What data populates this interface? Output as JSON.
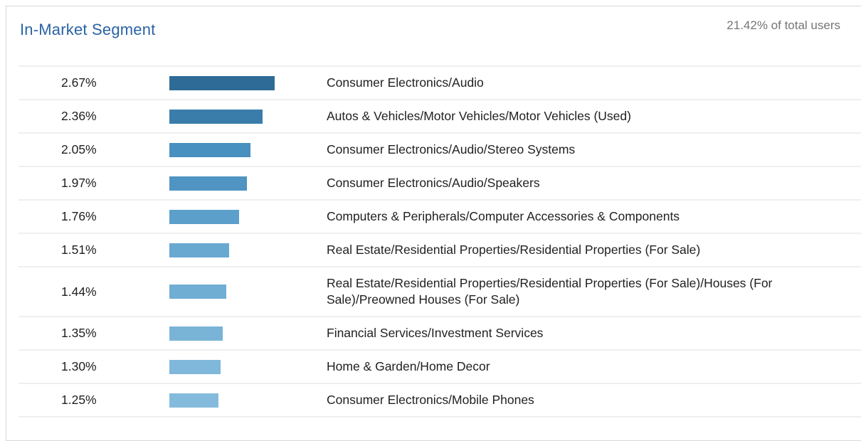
{
  "chart_data": {
    "type": "bar",
    "orientation": "horizontal",
    "title": "In-Market Segment",
    "subtitle": "21.42% of total users",
    "unit": "% of total users",
    "scale_max": 2.67,
    "legend": "none",
    "grid": "row-dividers-only",
    "categories": [
      "Consumer Electronics/Audio",
      "Autos & Vehicles/Motor Vehicles/Motor Vehicles (Used)",
      "Consumer Electronics/Audio/Stereo Systems",
      "Consumer Electronics/Audio/Speakers",
      "Computers & Peripherals/Computer Accessories & Components",
      "Real Estate/Residential Properties/Residential Properties (For Sale)",
      "Real Estate/Residential Properties/Residential Properties (For Sale)/Houses (For Sale)/Preowned Houses (For Sale)",
      "Financial Services/Investment Services",
      "Home & Garden/Home Decor",
      "Consumer Electronics/Mobile Phones"
    ],
    "values": [
      2.67,
      2.36,
      2.05,
      1.97,
      1.76,
      1.51,
      1.44,
      1.35,
      1.3,
      1.25
    ],
    "value_labels": [
      "2.67%",
      "2.36%",
      "2.05%",
      "1.97%",
      "1.76%",
      "1.51%",
      "1.44%",
      "1.35%",
      "1.30%",
      "1.25%"
    ],
    "bar_colors": [
      "#2e6b96",
      "#3a7dab",
      "#4890bf",
      "#4f94c2",
      "#5b9fca",
      "#68a9d1",
      "#70aed3",
      "#79b4d7",
      "#7fb8da",
      "#84bbdc"
    ],
    "colors": {
      "title_text": "#2a63a5",
      "subtitle_text": "#757575",
      "row_text": "#212121",
      "row_divider": "#efefef",
      "card_border": "#d7d7d7"
    }
  }
}
